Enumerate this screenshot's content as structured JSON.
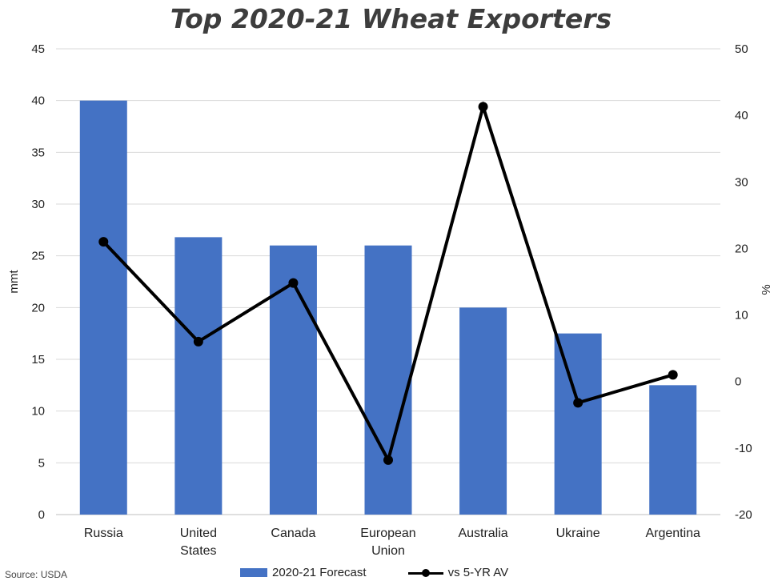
{
  "chart_data": {
    "type": "bar",
    "title": "Top 2020-21 Wheat Exporters",
    "categories": [
      [
        "Russia"
      ],
      [
        "United",
        "States"
      ],
      [
        "Canada"
      ],
      [
        "European",
        "Union"
      ],
      [
        "Australia"
      ],
      [
        "Ukraine"
      ],
      [
        "Argentina"
      ]
    ],
    "series": [
      {
        "name": "2020-21 Forecast",
        "type": "bar",
        "axis": "left",
        "color": "#4472C4",
        "values": [
          40,
          26.8,
          26,
          26,
          20,
          17.5,
          12.5
        ]
      },
      {
        "name": "vs 5-YR AV",
        "type": "line",
        "axis": "right",
        "color": "#000000",
        "values": [
          21,
          6,
          14.8,
          -11.8,
          41.3,
          -3.2,
          1
        ]
      }
    ],
    "ylabel": "mmt",
    "ylim": [
      0,
      45
    ],
    "yticks": [
      "0",
      "5",
      "10",
      "15",
      "20",
      "25",
      "30",
      "35",
      "40",
      "45"
    ],
    "y2label": "%",
    "y2lim": [
      -20,
      50
    ],
    "y2ticks": [
      "-20",
      "-10",
      "0",
      "10",
      "20",
      "30",
      "40",
      "50"
    ],
    "grid": true,
    "legend_position": "bottom",
    "source": "Source: USDA"
  }
}
